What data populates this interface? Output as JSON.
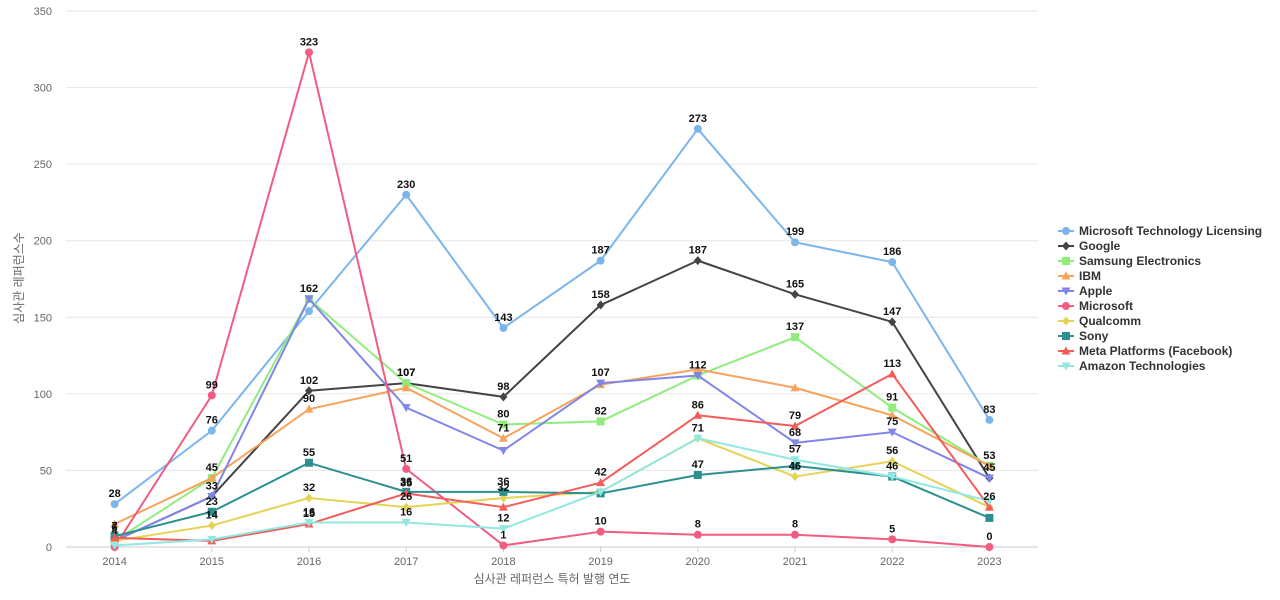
{
  "chart_data": {
    "type": "line",
    "title": "",
    "xlabel": "심사관 레퍼런스 특허 발행 연도",
    "ylabel": "심사관 레퍼런스수",
    "x": [
      "2014",
      "2015",
      "2016",
      "2017",
      "2018",
      "2019",
      "2020",
      "2021",
      "2022",
      "2023"
    ],
    "ylim": [
      0,
      350
    ],
    "yticks": [
      0,
      50,
      100,
      150,
      200,
      250,
      300,
      350
    ],
    "grid": true,
    "legend_position": "right",
    "series": [
      {
        "name": "Microsoft Technology Licensing",
        "color": "#7cb5ec",
        "marker": "circle",
        "values": [
          28,
          76,
          154,
          230,
          143,
          187,
          273,
          199,
          186,
          83
        ]
      },
      {
        "name": "Google",
        "color": "#434348",
        "marker": "diamond",
        "values": [
          4,
          33,
          102,
          107,
          98,
          158,
          187,
          165,
          147,
          45
        ]
      },
      {
        "name": "Samsung Electronics",
        "color": "#90ed7d",
        "marker": "square",
        "values": [
          4,
          45,
          162,
          107,
          80,
          82,
          112,
          137,
          91,
          53
        ]
      },
      {
        "name": "IBM",
        "color": "#f7a35c",
        "marker": "triangle",
        "values": [
          15,
          45,
          90,
          104,
          71,
          106,
          116,
          104,
          86,
          53
        ]
      },
      {
        "name": "Apple",
        "color": "#8085e9",
        "marker": "triangle-down",
        "values": [
          4,
          33,
          162,
          91,
          63,
          107,
          112,
          68,
          75,
          45
        ]
      },
      {
        "name": "Microsoft",
        "color": "#f15c80",
        "marker": "circle",
        "values": [
          0,
          99,
          323,
          51,
          1,
          10,
          8,
          8,
          5,
          0
        ]
      },
      {
        "name": "Qualcomm",
        "color": "#e4d354",
        "marker": "diamond",
        "values": [
          4,
          14,
          32,
          26,
          32,
          36,
          71,
          46,
          56,
          26
        ]
      },
      {
        "name": "Sony",
        "color": "#2b908f",
        "marker": "square",
        "values": [
          7,
          23,
          55,
          36,
          36,
          35,
          47,
          53,
          46,
          19
        ]
      },
      {
        "name": "Meta Platforms (Facebook)",
        "color": "#f45b5b",
        "marker": "triangle",
        "values": [
          6,
          4,
          15,
          35,
          26,
          42,
          86,
          79,
          113,
          26
        ]
      },
      {
        "name": "Amazon Technologies",
        "color": "#91e8e1",
        "marker": "triangle-down",
        "values": [
          1,
          5,
          16,
          16,
          12,
          36,
          71,
          57,
          46,
          30
        ]
      }
    ],
    "data_labels": [
      {
        "series": 0,
        "points": [
          0,
          1,
          3,
          4,
          5,
          6,
          7,
          8,
          9
        ]
      },
      {
        "series": 1,
        "points": [
          0,
          1,
          2,
          3,
          4,
          5,
          6,
          7,
          8,
          9
        ]
      },
      {
        "series": 2,
        "points": [
          1,
          2,
          3,
          4,
          5,
          6,
          7,
          8,
          9
        ]
      },
      {
        "series": 5,
        "points": [
          1,
          2,
          3,
          4,
          5,
          6,
          7,
          8,
          9
        ]
      },
      {
        "series": 6,
        "points": [
          1,
          2,
          3,
          4,
          6,
          7,
          8,
          9
        ]
      },
      {
        "series": 7,
        "points": [
          0,
          1,
          2,
          3,
          4,
          6,
          8
        ]
      },
      {
        "series": 8,
        "points": [
          0,
          2,
          3,
          5,
          6,
          7,
          8
        ]
      },
      {
        "series": 9,
        "points": [
          2,
          3,
          4,
          7
        ]
      },
      {
        "series": 3,
        "points": [
          2,
          4
        ]
      },
      {
        "series": 4,
        "points": [
          5,
          7,
          8
        ]
      }
    ]
  }
}
